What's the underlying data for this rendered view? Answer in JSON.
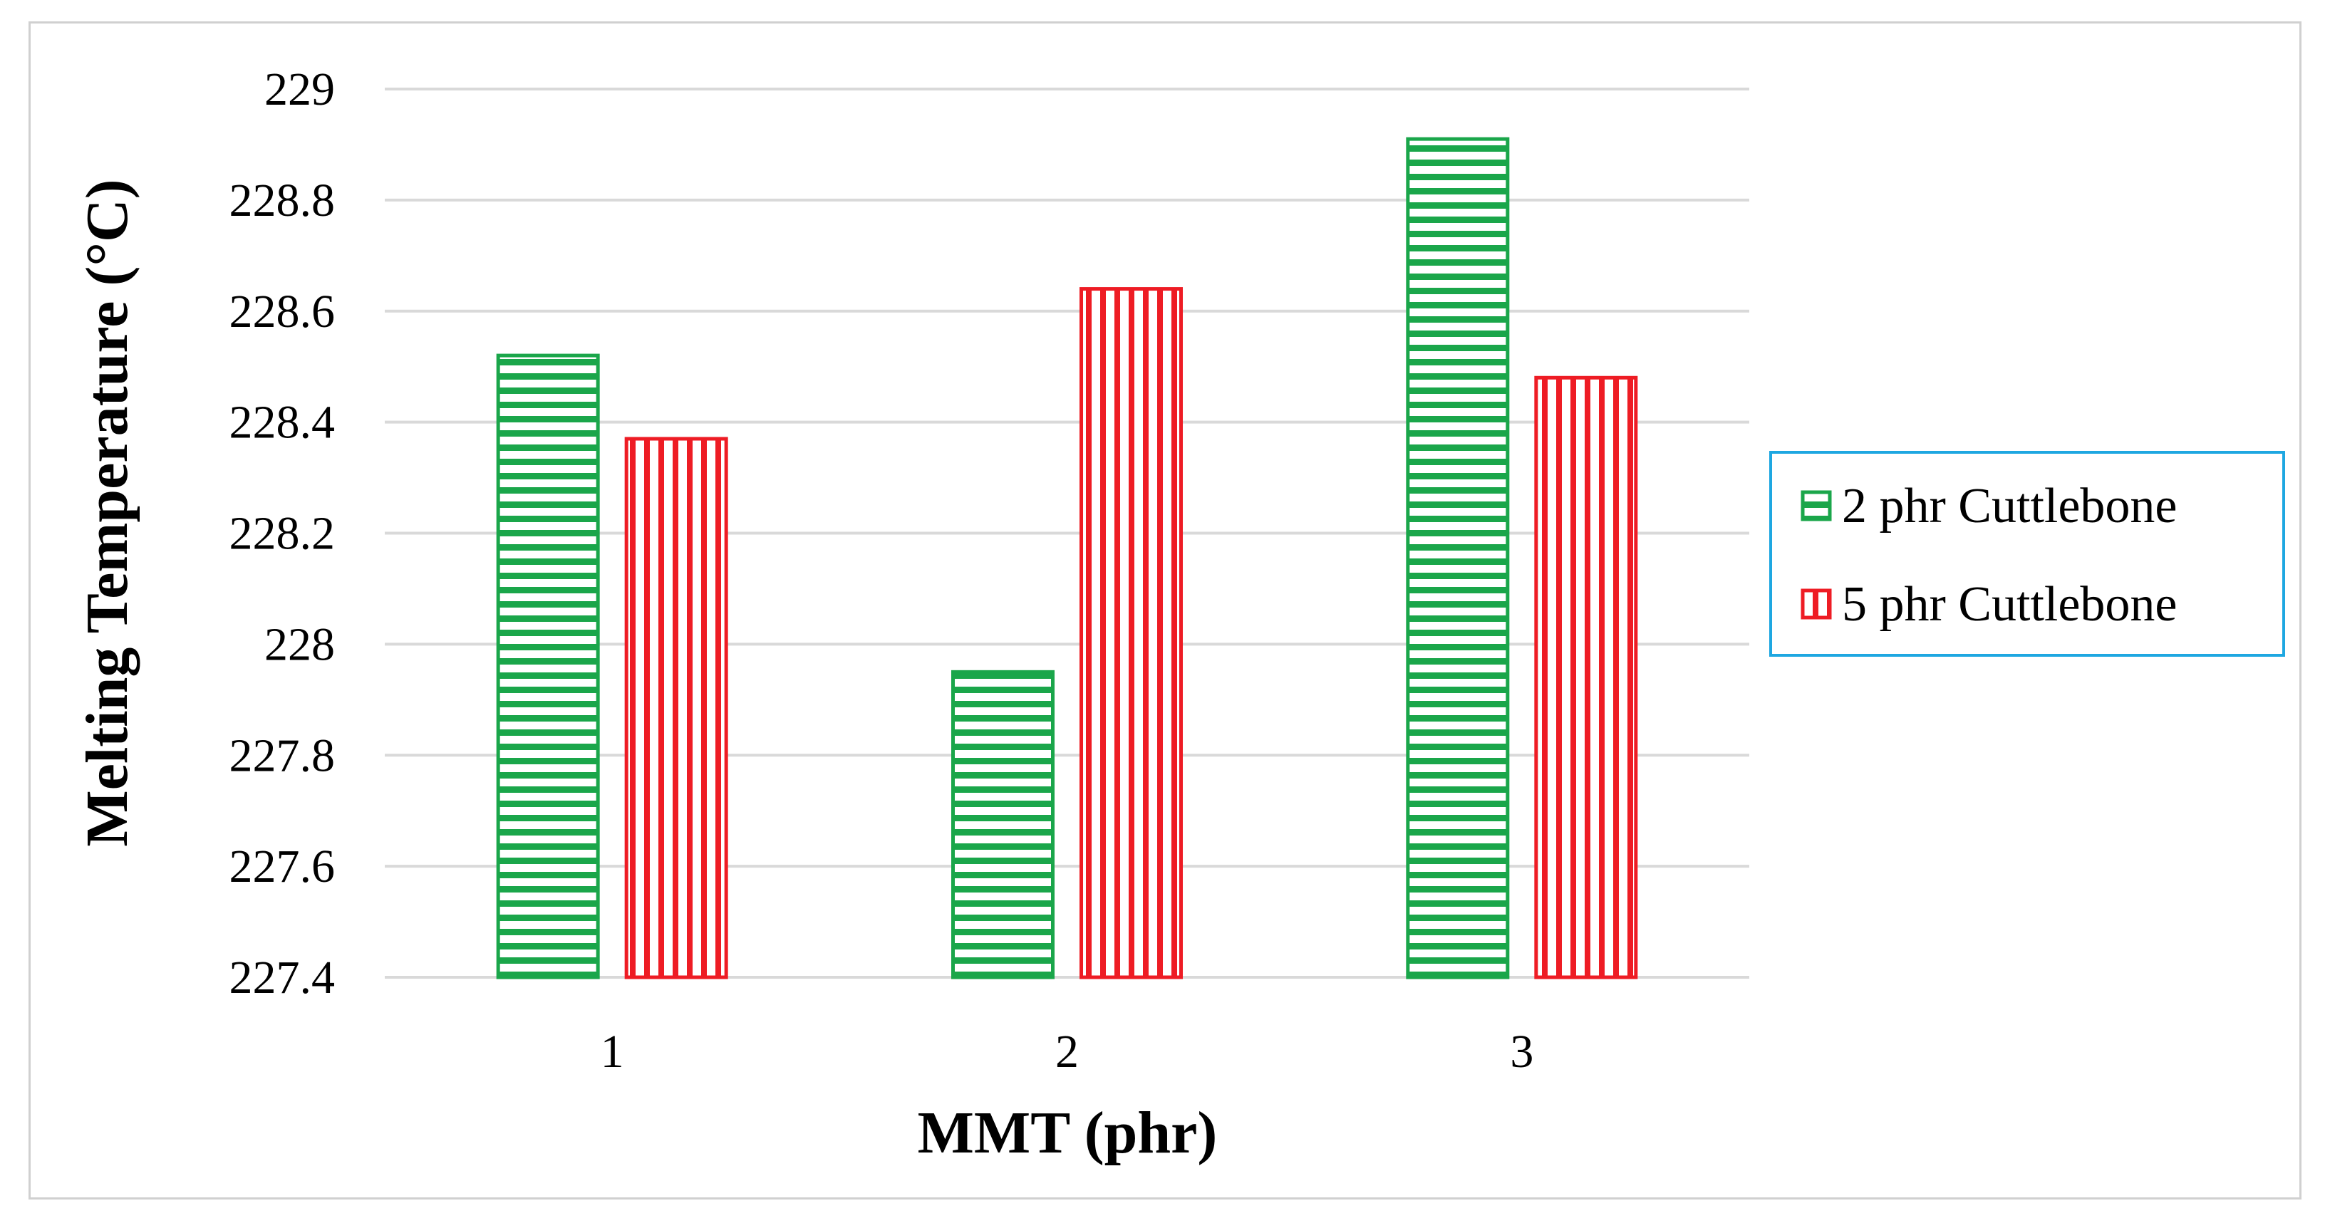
{
  "chart_data": {
    "type": "bar",
    "title": "",
    "xlabel": "MMT (phr)",
    "ylabel": "Melting Temperature (°C)",
    "categories": [
      "1",
      "2",
      "3"
    ],
    "ylim": [
      227.4,
      229
    ],
    "yticks": [
      "227.4",
      "227.6",
      "227.8",
      "228",
      "228.2",
      "228.4",
      "228.6",
      "228.8",
      "229"
    ],
    "grid": true,
    "legend_position": "right",
    "series": [
      {
        "name": "2 phr Cuttlebone",
        "values": [
          228.52,
          227.95,
          228.91
        ],
        "color": "#1aa64a",
        "pattern": "horizontal-stripes"
      },
      {
        "name": "5 phr Cuttlebone",
        "values": [
          228.37,
          228.64,
          228.48
        ],
        "color": "#ee1c24",
        "pattern": "vertical-stripes"
      }
    ]
  },
  "colors": {
    "grid": "#d9d9d9",
    "frame": "#d0d0d0",
    "legend_border": "#1ea7e1"
  }
}
